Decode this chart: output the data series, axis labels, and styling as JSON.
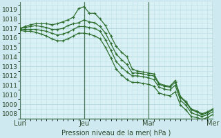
{
  "bg_color": "#ceeaf0",
  "plot_bg_color": "#d9f0f5",
  "grid_color": "#b0d8e0",
  "line_color": "#2d6e2d",
  "marker_color": "#2d6e2d",
  "ylabel": "Pression niveau de la mer( hPa )",
  "ylim": [
    1007.5,
    1019.8
  ],
  "yticks": [
    1008,
    1009,
    1010,
    1011,
    1012,
    1013,
    1014,
    1015,
    1016,
    1017,
    1018,
    1019
  ],
  "xtick_labels": [
    "Lun",
    "Jeu",
    "Mar",
    "Mer"
  ],
  "xtick_positions": [
    0,
    12,
    24,
    36
  ],
  "n_points": 37,
  "series": [
    [
      1017.0,
      1017.2,
      1017.4,
      1017.5,
      1017.5,
      1017.5,
      1017.4,
      1017.5,
      1017.7,
      1017.9,
      1018.2,
      1019.1,
      1019.3,
      1018.6,
      1018.6,
      1018.0,
      1017.3,
      1016.2,
      1015.1,
      1014.5,
      1014.0,
      1012.7,
      1012.5,
      1012.4,
      1012.3,
      1012.2,
      1011.2,
      1011.0,
      1010.9,
      1011.5,
      1009.8,
      1009.3,
      1008.5,
      1008.3,
      1008.0,
      1008.2,
      1008.5
    ],
    [
      1017.0,
      1017.1,
      1017.2,
      1017.3,
      1017.2,
      1017.1,
      1016.9,
      1016.9,
      1017.0,
      1017.3,
      1017.5,
      1017.6,
      1017.9,
      1017.7,
      1017.6,
      1017.2,
      1016.5,
      1015.4,
      1014.3,
      1013.7,
      1013.2,
      1012.3,
      1012.3,
      1012.2,
      1012.1,
      1012.0,
      1011.1,
      1010.9,
      1010.8,
      1011.3,
      1009.7,
      1009.2,
      1008.4,
      1008.2,
      1007.9,
      1008.1,
      1008.4
    ],
    [
      1016.9,
      1016.9,
      1016.9,
      1016.9,
      1016.8,
      1016.7,
      1016.5,
      1016.3,
      1016.4,
      1016.6,
      1016.9,
      1017.2,
      1017.2,
      1017.1,
      1017.0,
      1016.7,
      1015.8,
      1014.7,
      1013.5,
      1012.9,
      1012.4,
      1012.0,
      1012.0,
      1011.9,
      1011.8,
      1011.6,
      1010.8,
      1010.6,
      1010.5,
      1011.0,
      1009.4,
      1008.9,
      1008.1,
      1007.9,
      1007.7,
      1007.9,
      1008.2
    ],
    [
      1016.8,
      1016.7,
      1016.7,
      1016.6,
      1016.4,
      1016.2,
      1015.9,
      1015.7,
      1015.7,
      1015.9,
      1016.2,
      1016.5,
      1016.5,
      1016.4,
      1016.2,
      1015.9,
      1015.0,
      1013.9,
      1012.7,
      1012.1,
      1011.6,
      1011.3,
      1011.3,
      1011.2,
      1011.1,
      1010.9,
      1010.2,
      1010.0,
      1009.9,
      1010.3,
      1008.9,
      1008.4,
      1007.7,
      1007.6,
      1007.4,
      1007.6,
      1007.9
    ]
  ]
}
